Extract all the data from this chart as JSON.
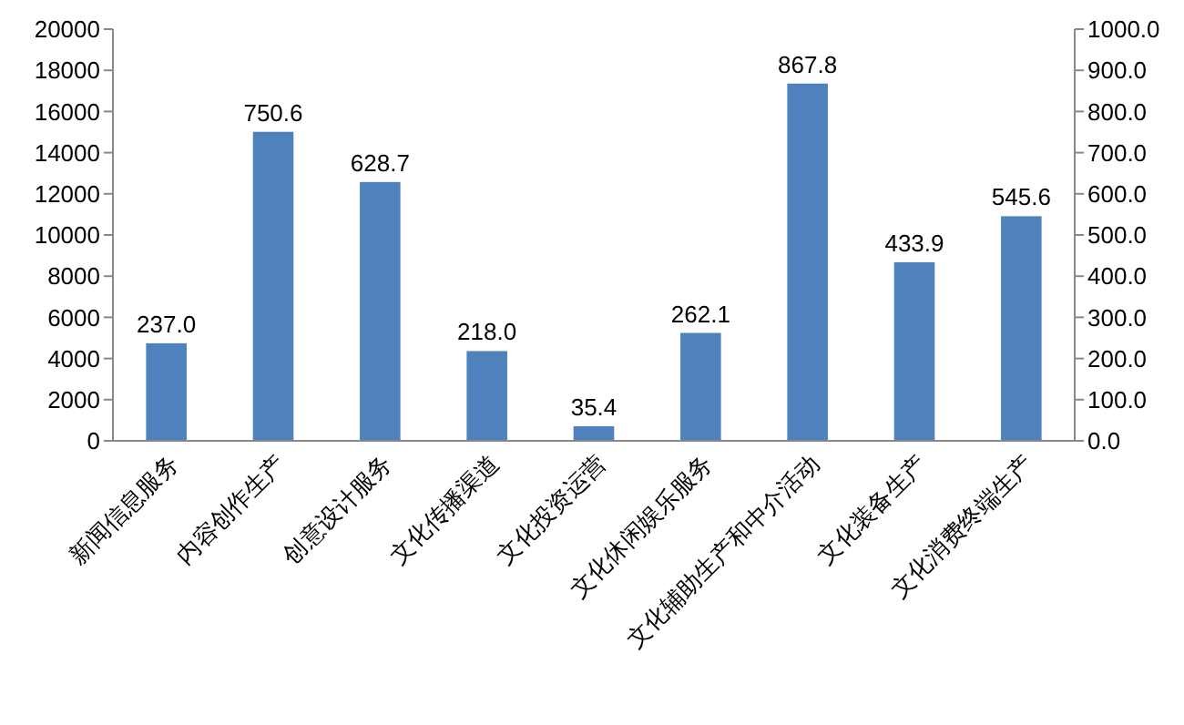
{
  "chart_data": {
    "type": "bar",
    "categories": [
      "新闻信息服务",
      "内容创作生产",
      "创意设计服务",
      "文化传播渠道",
      "文化投资运营",
      "文化休闲娱乐服务",
      "文化辅助生产和中介活动",
      "文化装备生产",
      "文化消费终端生产"
    ],
    "series": [
      {
        "color": "#4f81bd",
        "axis": "y2",
        "values": [
          237.0,
          750.6,
          628.7,
          218.0,
          35.4,
          262.1,
          867.8,
          433.9,
          545.6
        ],
        "value_labels": [
          "237.0",
          "750.6",
          "628.7",
          "218.0",
          "35.4",
          "262.1",
          "867.8",
          "433.9",
          "545.6"
        ]
      }
    ],
    "ylim": [
      0,
      20000
    ],
    "yticks": [
      0,
      2000,
      4000,
      6000,
      8000,
      10000,
      12000,
      14000,
      16000,
      18000,
      20000
    ],
    "y2lim": [
      0,
      1000
    ],
    "y2ticks": [
      {
        "value": 0,
        "label": "0.0"
      },
      {
        "value": 100,
        "label": "100.0"
      },
      {
        "value": 200,
        "label": "200.0"
      },
      {
        "value": 300,
        "label": "300.0"
      },
      {
        "value": 400,
        "label": "400.0"
      },
      {
        "value": 500,
        "label": "500.0"
      },
      {
        "value": 600,
        "label": "600.0"
      },
      {
        "value": 700,
        "label": "700.0"
      },
      {
        "value": 800,
        "label": "800.0"
      },
      {
        "value": 900,
        "label": "900.0"
      },
      {
        "value": 1000,
        "label": "1000.0"
      }
    ],
    "grid": false
  }
}
